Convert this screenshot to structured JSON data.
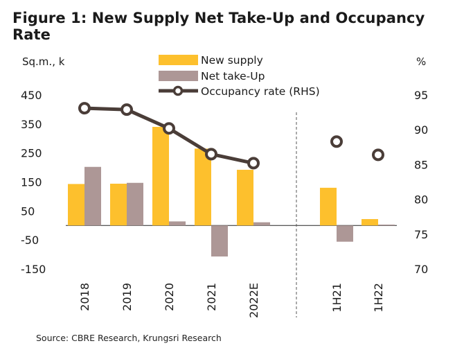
{
  "title": "Figure 1: New Supply Net Take-Up and Occupancy Rate",
  "source": "Source: CBRE Research, Krungsri Research",
  "chart_data": {
    "type": "bar",
    "categories": [
      "2018",
      "2019",
      "2020",
      "2021",
      "2022E",
      "1H21",
      "1H22"
    ],
    "series": [
      {
        "name": "New supply",
        "kind": "bar",
        "axis": "left",
        "color": "#FDC02D",
        "values": [
          143,
          144,
          340,
          265,
          192,
          130,
          22
        ]
      },
      {
        "name": "Net take-Up",
        "kind": "bar",
        "axis": "left",
        "color": "#AD9796",
        "values": [
          202,
          147,
          14,
          -107,
          11,
          -56,
          3
        ]
      },
      {
        "name": "Occupancy rate (RHS)",
        "kind": "line",
        "axis": "right",
        "color": "#4A3D38",
        "values": [
          93.1,
          92.9,
          90.2,
          86.5,
          85.2,
          88.3,
          86.4
        ]
      }
    ],
    "left_axis": {
      "label": "Sq.m., k",
      "ticks": [
        "450",
        "350",
        "250",
        "150",
        "50",
        "-50",
        "-150"
      ],
      "min": -150,
      "max": 450
    },
    "right_axis": {
      "label": "%",
      "ticks": [
        "95",
        "90",
        "85",
        "80",
        "75",
        "70"
      ],
      "min": 70,
      "max": 95
    },
    "legend_position": "top-center",
    "grid": false
  }
}
